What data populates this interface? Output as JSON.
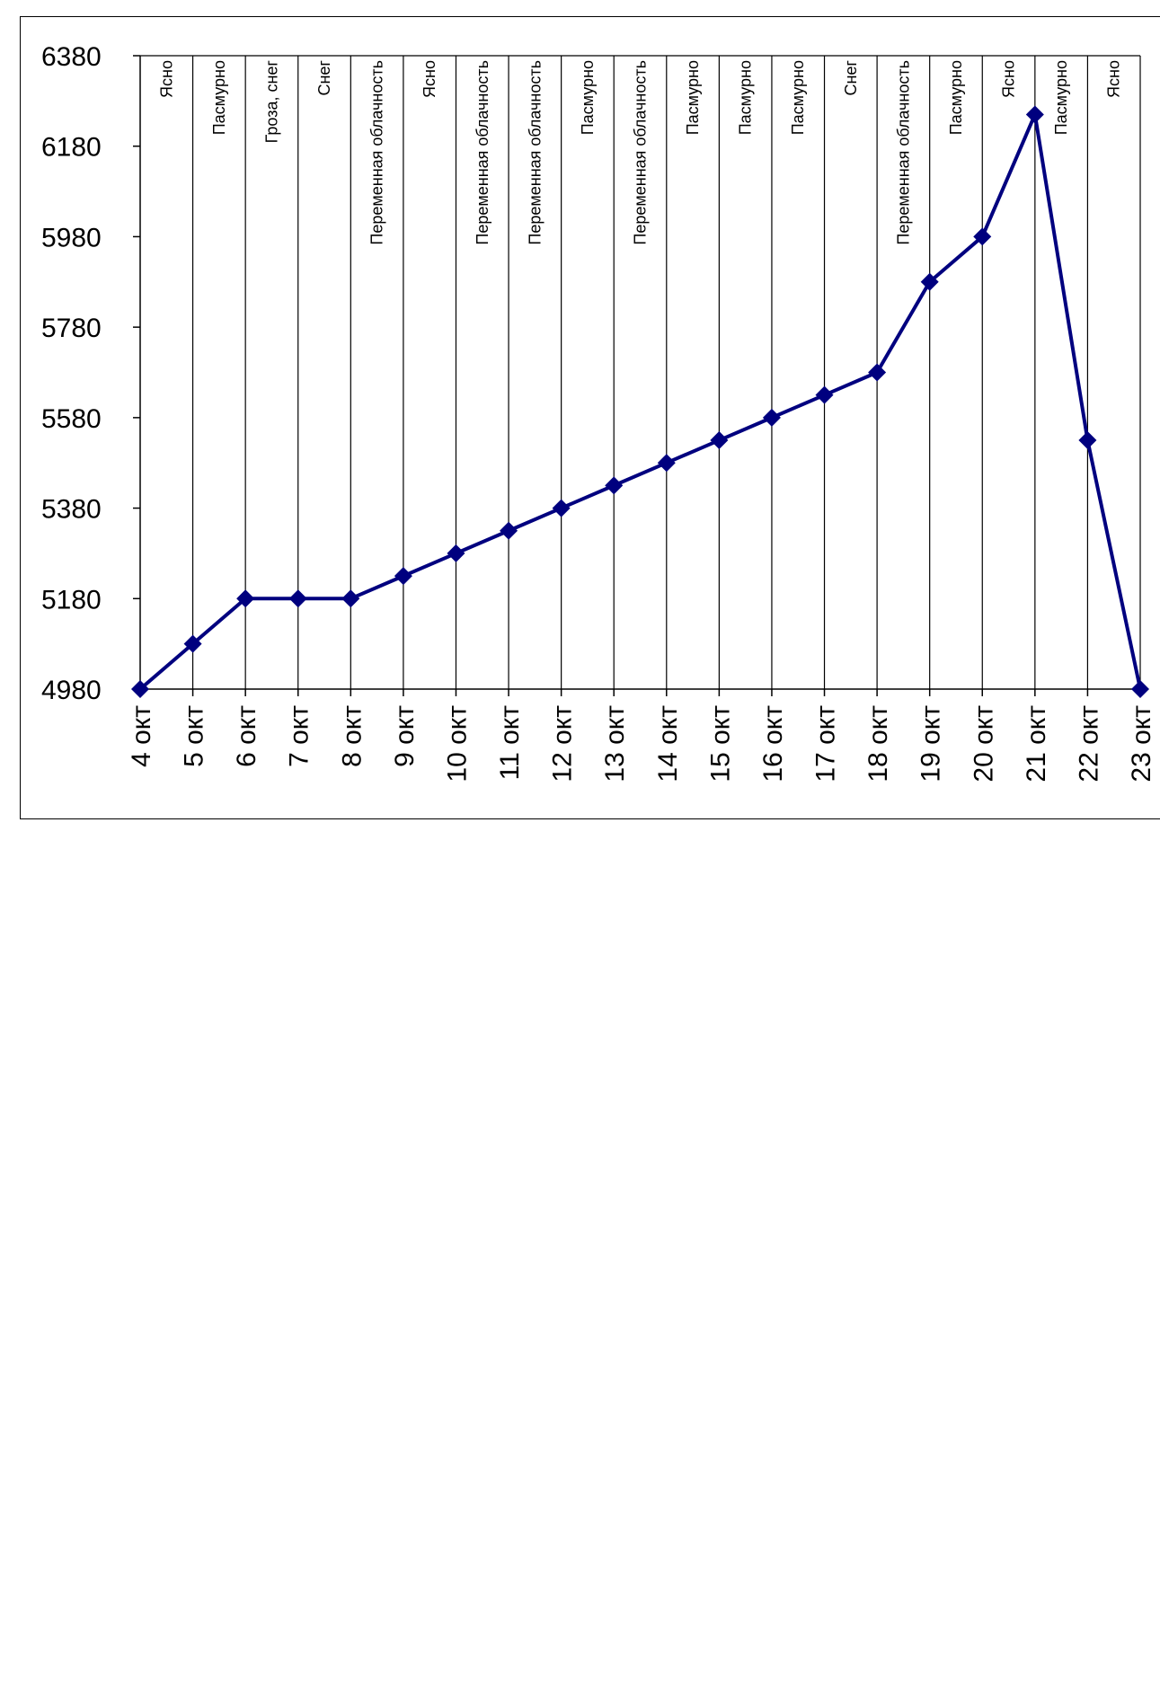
{
  "chart_data": {
    "type": "line",
    "title": "",
    "xlabel": "",
    "ylabel": "",
    "ylim": [
      4980,
      6380
    ],
    "yticks": [
      4980,
      5180,
      5380,
      5580,
      5780,
      5980,
      6180,
      6380
    ],
    "categories": [
      "4 окт",
      "5 окт",
      "6 окт",
      "7 окт",
      "8 окт",
      "9 окт",
      "10 окт",
      "11 окт",
      "12 окт",
      "13 окт",
      "14 окт",
      "15 окт",
      "16 окт",
      "17 окт",
      "18 окт",
      "19 окт",
      "20 окт",
      "21 окт",
      "22 окт",
      "23 окт"
    ],
    "series": [
      {
        "values": [
          4980,
          5080,
          5180,
          5180,
          5180,
          5230,
          5280,
          5330,
          5380,
          5430,
          5480,
          5530,
          5580,
          5630,
          5680,
          5880,
          5980,
          6250,
          5530,
          4980
        ]
      }
    ],
    "weather_labels": [
      "Ясно",
      "Пасмурно",
      "Гроза, снег",
      "Снег",
      "Переменная облачность",
      "Ясно",
      "Переменная облачность",
      "Переменная облачность",
      "Пасмурно",
      "Переменная облачность",
      "Пасмурно",
      "Пасмурно",
      "Пасмурно",
      "Снег",
      "Переменная облачность",
      "Пасмурно",
      "Ясно",
      "Пасмурно",
      "Ясно"
    ],
    "grid": "vertical",
    "legend": "none",
    "line_color": "#00007f",
    "marker": "diamond"
  }
}
